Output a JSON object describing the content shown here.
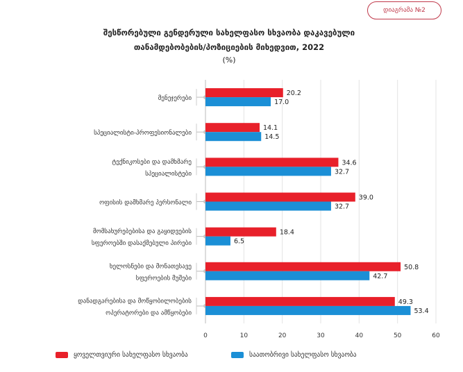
{
  "badge": "დიაგრამა №2",
  "title_line1": "შესწორებული გენდერული სახელფასო სხვაობა დაკავებული",
  "title_line2": "თანამდებობების/პოზიციების მიხედვით, 2022",
  "unit": "(%)",
  "colors": {
    "monthly": "#e8202a",
    "hourly": "#1b8fd6"
  },
  "chart_data": {
    "type": "bar",
    "orientation": "horizontal",
    "title": "შესწორებული გენდერული სახელფასო სხვაობა დაკავებული თანამდებობების/პოზიციების მიხედვით, 2022 (%)",
    "categories": [
      [
        "მენეჯერები"
      ],
      [
        "სპეციალისტი-პროფესიონალები"
      ],
      [
        "ტექნიკოსები და დამხმარე",
        "სპეციალისტები"
      ],
      [
        "ოფისის დამხმარე პერსონალი"
      ],
      [
        "მომსახურებებისა და გაყიდვების",
        "სფეროებში დასაქმებული პირები"
      ],
      [
        "ხელოსნები და მონათესავე",
        "სფეროების მუშები"
      ],
      [
        "დანადგარებისა და მოწყობილობების",
        "ოპერატორები და ამწყობები"
      ]
    ],
    "series": [
      {
        "name": "ყოველთვიური სახელფასო სხვაობა",
        "values": [
          20.2,
          14.1,
          34.6,
          39.0,
          18.4,
          50.8,
          49.3
        ]
      },
      {
        "name": "საათობრივი სახელფასო სხვაობა",
        "values": [
          17.0,
          14.5,
          32.7,
          32.7,
          6.5,
          42.7,
          53.4
        ]
      }
    ],
    "xlim": [
      0,
      60
    ],
    "xticks": [
      "0",
      "10",
      "20",
      "30",
      "40",
      "50",
      "60"
    ],
    "grid": true,
    "legend": "bottom"
  }
}
